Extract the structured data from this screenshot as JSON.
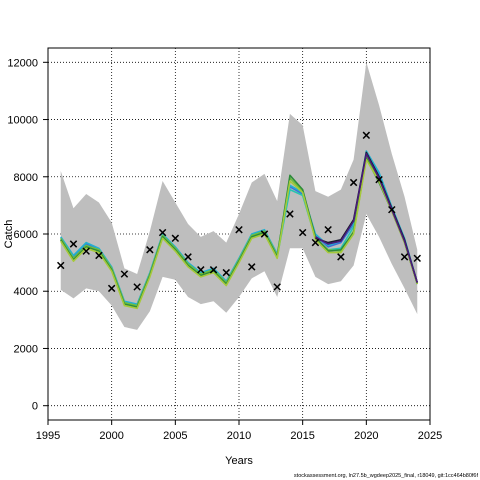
{
  "chart_data": {
    "type": "line",
    "xlabel": "Years",
    "ylabel": "Catch",
    "xlim": [
      1995,
      2025
    ],
    "ylim": [
      -500,
      12500
    ],
    "x_ticks": [
      1995,
      2000,
      2005,
      2010,
      2015,
      2020,
      2025
    ],
    "y_ticks": [
      0,
      2000,
      4000,
      6000,
      8000,
      10000,
      12000
    ],
    "grid": true,
    "grid_style": "dotted",
    "band_color": "#bebebe",
    "band": {
      "x": [
        1996,
        1997,
        1998,
        1999,
        2000,
        2001,
        2002,
        2003,
        2004,
        2005,
        2006,
        2007,
        2008,
        2009,
        2010,
        2011,
        2012,
        2013,
        2014,
        2015,
        2016,
        2017,
        2018,
        2019,
        2020,
        2021,
        2022,
        2023,
        2024
      ],
      "upper": [
        8200,
        6900,
        7400,
        7100,
        6400,
        4800,
        4600,
        6100,
        7850,
        7100,
        6350,
        5900,
        6100,
        5700,
        6700,
        7800,
        8100,
        7150,
        10200,
        9800,
        7500,
        7300,
        7550,
        8600,
        12000,
        10500,
        8800,
        7300,
        5450
      ],
      "lower": [
        4050,
        3750,
        4100,
        4000,
        3500,
        2750,
        2650,
        3300,
        4500,
        4400,
        3800,
        3550,
        3650,
        3250,
        3800,
        4450,
        4700,
        3800,
        5500,
        5500,
        4500,
        4250,
        4350,
        4900,
        6700,
        5900,
        4950,
        4100,
        3200
      ]
    },
    "series": [
      {
        "color": "#3b6fd8",
        "values": [
          5850,
          5200,
          5650,
          5450,
          4800,
          3600,
          3500,
          4600,
          5950,
          5500,
          4950,
          4600,
          4750,
          4300,
          5100,
          5950,
          6100,
          5250,
          7650,
          7400,
          5950,
          5550,
          5700,
          6350,
          8800,
          8050,
          6900,
          5800,
          4300
        ]
      },
      {
        "color": "#23b0d0",
        "values": [
          5900,
          5250,
          5700,
          5500,
          4850,
          3650,
          3550,
          4650,
          6000,
          5550,
          5000,
          4650,
          4800,
          4350,
          5150,
          6000,
          6150,
          5300,
          7700,
          7450,
          6000,
          5600,
          5750,
          6400,
          8900,
          8150,
          6950,
          5850,
          4300
        ]
      },
      {
        "color": "#26c4b0",
        "values": [
          5800,
          5150,
          5600,
          5400,
          4750,
          3550,
          3450,
          4550,
          5900,
          5450,
          4900,
          4550,
          4700,
          4250,
          5050,
          5900,
          6050,
          5200,
          7550,
          7350,
          5850,
          5450,
          5500,
          6250,
          8750,
          7900,
          6850,
          5750,
          4250
        ]
      },
      {
        "color": "#6fbf3a",
        "values": [
          5850,
          5150,
          5600,
          5450,
          4800,
          3600,
          3500,
          4600,
          5950,
          5500,
          4950,
          4600,
          4750,
          4300,
          5100,
          5950,
          6100,
          5250,
          7950,
          7500,
          5850,
          5450,
          5400,
          6100,
          8700,
          7850,
          6850,
          5750,
          4300
        ]
      },
      {
        "color": "#2e8b3a",
        "values": [
          5800,
          5100,
          5550,
          5400,
          4750,
          3550,
          3450,
          4550,
          5900,
          5450,
          4900,
          4550,
          4700,
          4250,
          5050,
          5900,
          6050,
          5200,
          8050,
          7550,
          5900,
          5400,
          5450,
          6050,
          8650,
          7800,
          6800,
          5700,
          4250
        ]
      },
      {
        "color": "#a6c93a",
        "values": [
          5750,
          5050,
          5500,
          5350,
          4700,
          3500,
          3400,
          4500,
          5850,
          5400,
          4850,
          4500,
          4650,
          4200,
          5000,
          5850,
          6000,
          5150,
          7850,
          7450,
          5800,
          5350,
          5350,
          6000,
          8600,
          7850,
          6800,
          5700,
          4250
        ]
      },
      {
        "color": "#1a1a2e",
        "values": [
          null,
          null,
          null,
          null,
          null,
          null,
          null,
          null,
          null,
          null,
          null,
          null,
          null,
          null,
          null,
          null,
          null,
          null,
          null,
          null,
          5850,
          5700,
          5800,
          6500,
          8850,
          8000,
          6900,
          5800,
          4300
        ]
      },
      {
        "color": "#4a1a7a",
        "values": [
          null,
          null,
          null,
          null,
          null,
          null,
          null,
          null,
          null,
          null,
          null,
          null,
          null,
          null,
          null,
          null,
          null,
          null,
          null,
          null,
          5900,
          5650,
          5750,
          6450,
          8800,
          7950,
          6850,
          5750,
          4300
        ]
      }
    ],
    "observed": {
      "x": [
        1996,
        1997,
        1998,
        1999,
        2000,
        2001,
        2002,
        2003,
        2004,
        2005,
        2006,
        2007,
        2008,
        2009,
        2010,
        2011,
        2012,
        2013,
        2014,
        2015,
        2016,
        2017,
        2018,
        2019,
        2020,
        2021,
        2022,
        2023,
        2024
      ],
      "values": [
        4900,
        5650,
        5400,
        5250,
        4100,
        4600,
        4150,
        5450,
        6050,
        5850,
        5200,
        4750,
        4750,
        4650,
        6150,
        4850,
        6000,
        4150,
        6700,
        6050,
        5700,
        6150,
        5200,
        7800,
        9450,
        7900,
        6850,
        5200,
        5150
      ]
    },
    "footer_text": "stockassessment.org, ln27.5b_wgdeep2025_final, r18049, git:1cc464b80f6f"
  }
}
